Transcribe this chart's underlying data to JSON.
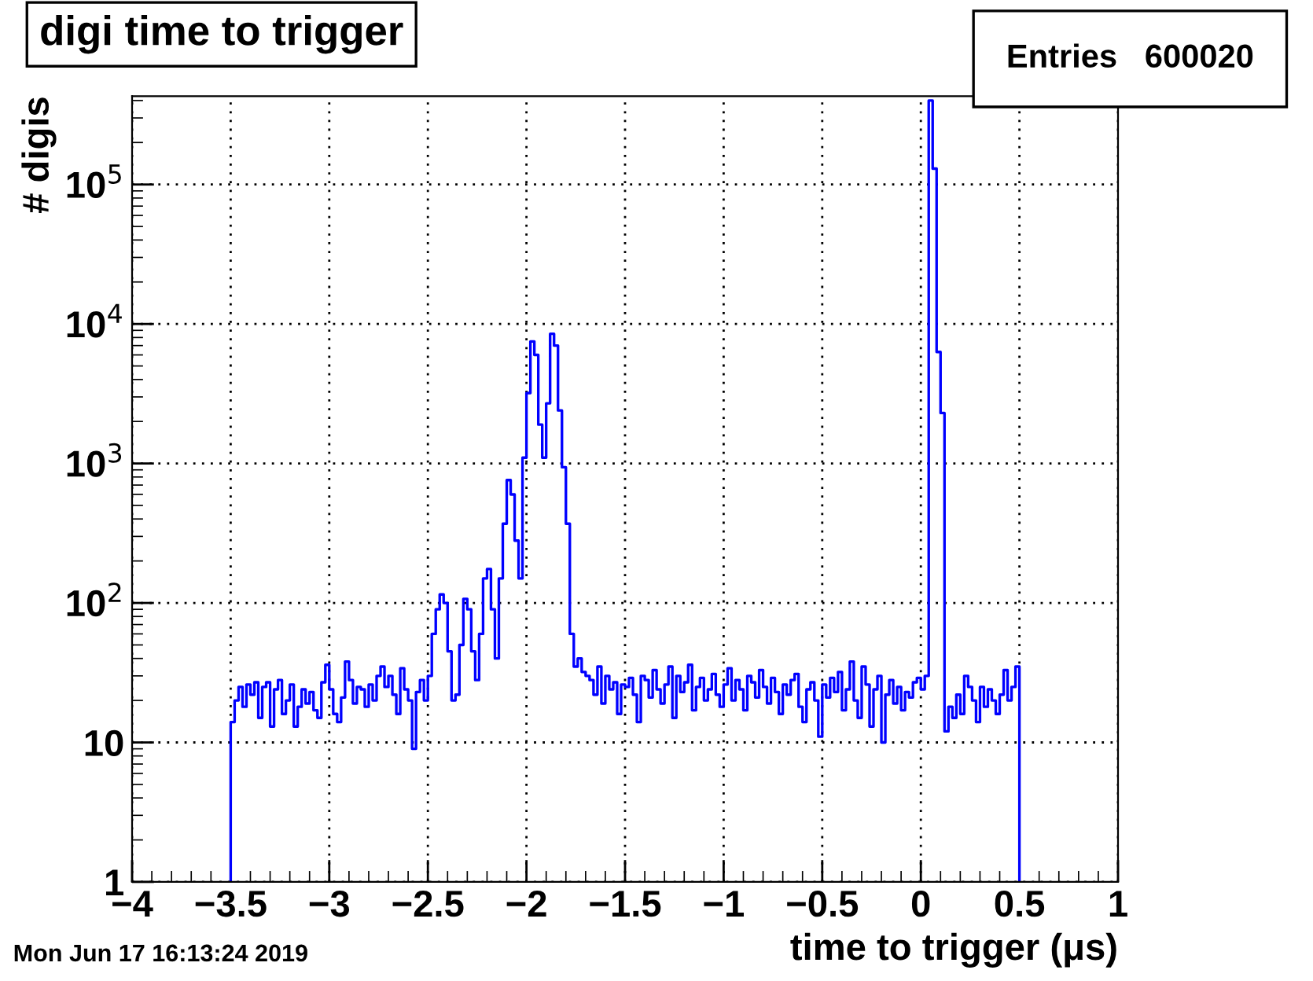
{
  "chart_data": {
    "type": "histogram",
    "title": "digi time to trigger",
    "xlabel": "time to trigger (μs)",
    "ylabel": "# digis",
    "annotations": [
      "Entries   600020",
      "Mon Jun 17 16:13:24 2019"
    ],
    "color": "#0000ff",
    "log": "y",
    "grid": true,
    "xlim": [
      -4,
      1
    ],
    "ylim": [
      1,
      430000
    ],
    "xticks": [
      {
        "value": -4,
        "label": "−4"
      },
      {
        "value": -3.5,
        "label": "−3.5"
      },
      {
        "value": -3,
        "label": "−3"
      },
      {
        "value": -2.5,
        "label": "−2.5"
      },
      {
        "value": -2,
        "label": "−2"
      },
      {
        "value": -1.5,
        "label": "−1.5"
      },
      {
        "value": -1,
        "label": "−1"
      },
      {
        "value": -0.5,
        "label": "−0.5"
      },
      0,
      0.5,
      1
    ],
    "yticks": [
      1,
      10,
      {
        "value": 100,
        "label": "10$^{2}$"
      },
      {
        "value": 1000,
        "label": "10$^{3}$"
      },
      {
        "value": 10000,
        "label": "10$^{4}$"
      },
      {
        "value": 100000,
        "label": "10$^{5}$"
      }
    ],
    "bins": [
      -3.5,
      -3.48,
      -3.46,
      -3.44,
      -3.42,
      -3.4,
      -3.38,
      -3.36,
      -3.34,
      -3.32,
      -3.3,
      -3.28,
      -3.26,
      -3.24,
      -3.22,
      -3.2,
      -3.18,
      -3.16,
      -3.14,
      -3.12,
      -3.1,
      -3.08,
      -3.06,
      -3.04,
      -3.02,
      -3.0,
      -2.98,
      -2.96,
      -2.94,
      -2.92,
      -2.9,
      -2.88,
      -2.86,
      -2.84,
      -2.82,
      -2.8,
      -2.78,
      -2.76,
      -2.74,
      -2.72,
      -2.7,
      -2.68,
      -2.66,
      -2.64,
      -2.62,
      -2.6,
      -2.58,
      -2.56,
      -2.54,
      -2.52,
      -2.5,
      -2.48,
      -2.46,
      -2.44,
      -2.42,
      -2.4,
      -2.38,
      -2.36,
      -2.34,
      -2.32,
      -2.3,
      -2.28,
      -2.26,
      -2.24,
      -2.22,
      -2.2,
      -2.18,
      -2.16,
      -2.14,
      -2.12,
      -2.1,
      -2.08,
      -2.06,
      -2.04,
      -2.02,
      -2.0,
      -1.98,
      -1.96,
      -1.94,
      -1.92,
      -1.9,
      -1.88,
      -1.86,
      -1.84,
      -1.82,
      -1.8,
      -1.78,
      -1.76,
      -1.74,
      -1.72,
      -1.7,
      -1.68,
      -1.66,
      -1.64,
      -1.62,
      -1.6,
      -1.58,
      -1.56,
      -1.54,
      -1.52,
      -1.5,
      -1.48,
      -1.46,
      -1.44,
      -1.42,
      -1.4,
      -1.38,
      -1.36,
      -1.34,
      -1.32,
      -1.3,
      -1.28,
      -1.26,
      -1.24,
      -1.22,
      -1.2,
      -1.18,
      -1.16,
      -1.14,
      -1.12,
      -1.1,
      -1.08,
      -1.06,
      -1.04,
      -1.02,
      -1.0,
      -0.98,
      -0.96,
      -0.94,
      -0.92,
      -0.9,
      -0.88,
      -0.86,
      -0.84,
      -0.82,
      -0.8,
      -0.78,
      -0.76,
      -0.74,
      -0.72,
      -0.7,
      -0.68,
      -0.66,
      -0.64,
      -0.62,
      -0.6,
      -0.58,
      -0.56,
      -0.54,
      -0.52,
      -0.5,
      -0.48,
      -0.46,
      -0.44,
      -0.42,
      -0.4,
      -0.38,
      -0.36,
      -0.34,
      -0.32,
      -0.3,
      -0.28,
      -0.26,
      -0.24,
      -0.22,
      -0.2,
      -0.18,
      -0.16,
      -0.14,
      -0.12,
      -0.1,
      -0.08,
      -0.06,
      -0.04,
      -0.02,
      0.0,
      0.02,
      0.04,
      0.06,
      0.08,
      0.1,
      0.12,
      0.14,
      0.16,
      0.18,
      0.2,
      0.22,
      0.24,
      0.26,
      0.28,
      0.3,
      0.32,
      0.34,
      0.36,
      0.38,
      0.4,
      0.42,
      0.44,
      0.46,
      0.48,
      0.5
    ],
    "values": [
      14,
      20,
      25,
      18,
      26,
      22,
      27,
      15,
      25,
      27,
      13,
      24,
      28,
      16,
      20,
      26,
      13,
      18,
      24,
      19,
      23,
      17,
      15,
      27,
      36,
      24,
      16,
      14,
      21,
      38,
      28,
      19,
      25,
      24,
      18,
      26,
      20,
      30,
      35,
      25,
      30,
      22,
      16,
      34,
      24,
      20,
      9,
      23,
      28,
      20,
      30,
      60,
      90,
      115,
      100,
      45,
      20,
      22,
      50,
      107,
      90,
      45,
      28,
      60,
      150,
      175,
      90,
      40,
      150,
      370,
      760,
      600,
      280,
      150,
      1100,
      3200,
      7500,
      6000,
      1900,
      1100,
      2700,
      8500,
      7000,
      2400,
      940,
      370,
      60,
      35,
      40,
      32,
      30,
      28,
      22,
      35,
      19,
      30,
      24,
      27,
      16,
      26,
      25,
      29,
      22,
      14,
      30,
      28,
      21,
      33,
      24,
      19,
      26,
      35,
      15,
      30,
      23,
      27,
      36,
      17,
      25,
      29,
      20,
      24,
      31,
      22,
      18,
      26,
      34,
      20,
      28,
      24,
      17,
      30,
      27,
      21,
      33,
      25,
      19,
      29,
      23,
      16,
      26,
      22,
      28,
      31,
      18,
      14,
      24,
      27,
      20,
      11,
      26,
      21,
      29,
      23,
      32,
      17,
      24,
      38,
      20,
      15,
      35,
      26,
      13,
      24,
      30,
      10,
      22,
      28,
      19,
      25,
      17,
      23,
      21,
      27,
      29,
      24,
      30,
      400000,
      130000,
      6300,
      2300,
      12,
      18,
      15,
      22,
      16,
      30,
      25,
      20,
      14,
      25,
      18,
      24,
      20,
      16,
      22,
      33,
      20,
      25,
      35
    ]
  }
}
